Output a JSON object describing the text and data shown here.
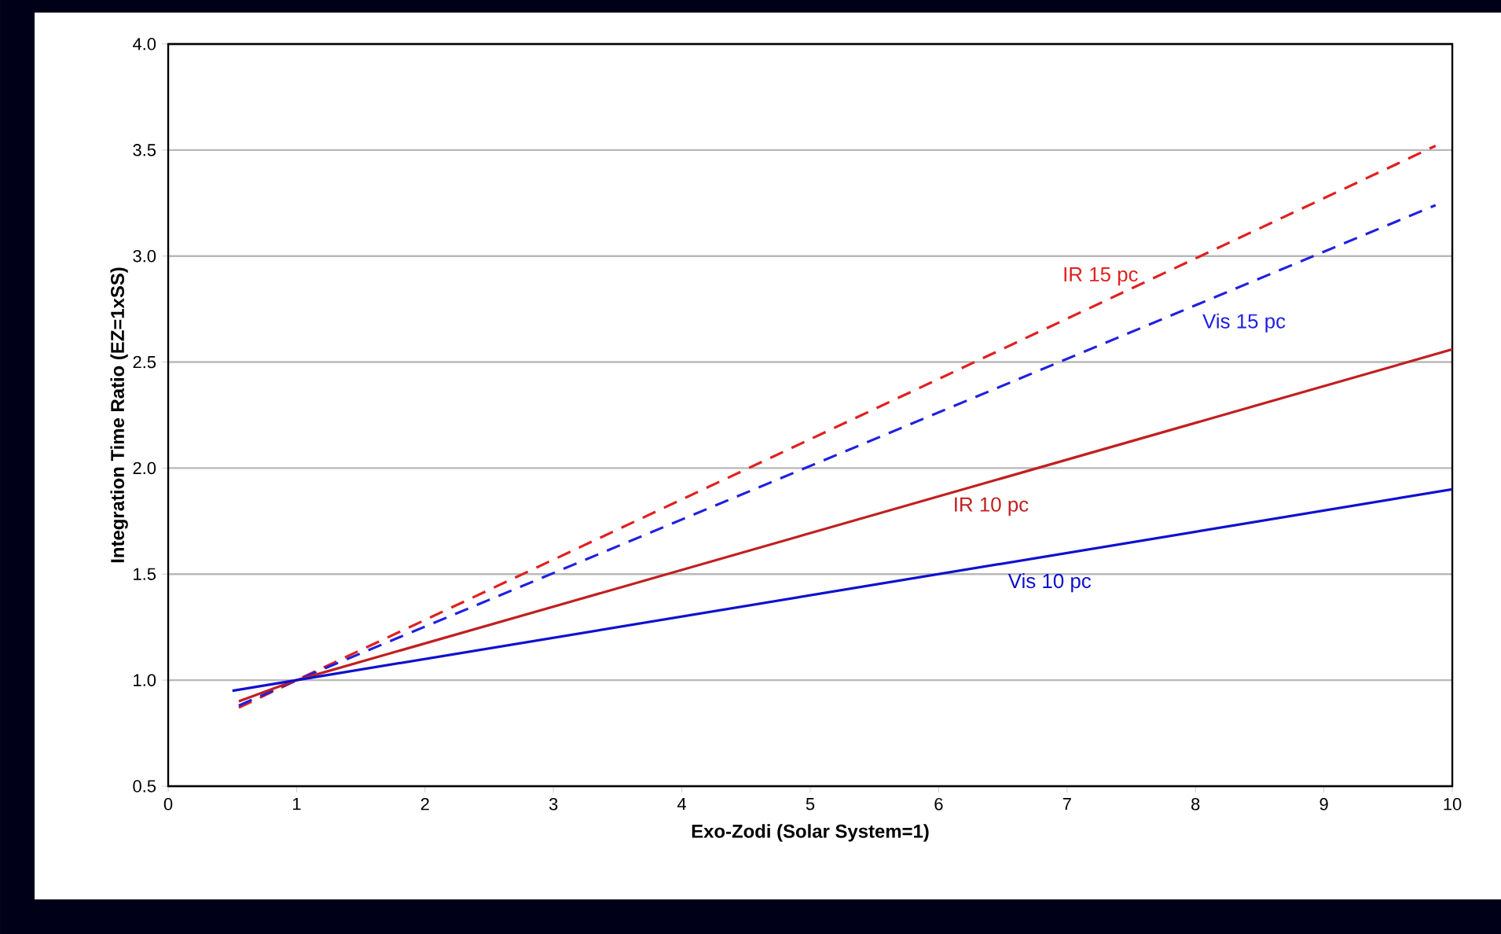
{
  "chart_data": {
    "type": "line",
    "xlabel": "Exo-Zodi (Solar System=1)",
    "ylabel": "Integration Time Ratio  (EZ=1xSS)",
    "xlim": [
      0,
      10
    ],
    "ylim": [
      0.5,
      4.0
    ],
    "xticks": [
      0,
      1,
      2,
      3,
      4,
      5,
      6,
      7,
      8,
      9,
      10
    ],
    "yticks": [
      {
        "value": 0.5,
        "label": "0.5"
      },
      {
        "value": 1,
        "label": "1.0"
      },
      {
        "value": 1.5,
        "label": "1.5"
      },
      {
        "value": 2,
        "label": "2.0"
      },
      {
        "value": 2.5,
        "label": "2.5"
      },
      {
        "value": 3,
        "label": "3.0"
      },
      {
        "value": 3.5,
        "label": "3.5"
      },
      {
        "value": 4,
        "label": "4.0"
      }
    ],
    "grid": "y",
    "series": [
      {
        "name": "IR 15 pc",
        "color": "#e02020",
        "line_style": "dashed",
        "x": [
          0.55,
          1,
          9.87
        ],
        "values": [
          0.87,
          1.0,
          3.52
        ]
      },
      {
        "name": "Vis 15 pc",
        "color": "#2020e0",
        "line_style": "dashed",
        "x": [
          0.55,
          1,
          9.87
        ],
        "values": [
          0.88,
          1.0,
          3.24
        ]
      },
      {
        "name": "IR 10 pc",
        "color": "#c02020",
        "line_style": "solid",
        "x": [
          0.55,
          1,
          10
        ],
        "values": [
          0.9,
          1.0,
          2.56
        ]
      },
      {
        "name": "Vis 10 pc",
        "color": "#1010d0",
        "line_style": "solid",
        "x": [
          0.5,
          1,
          10
        ],
        "values": [
          0.95,
          1.0,
          1.9
        ]
      }
    ]
  }
}
